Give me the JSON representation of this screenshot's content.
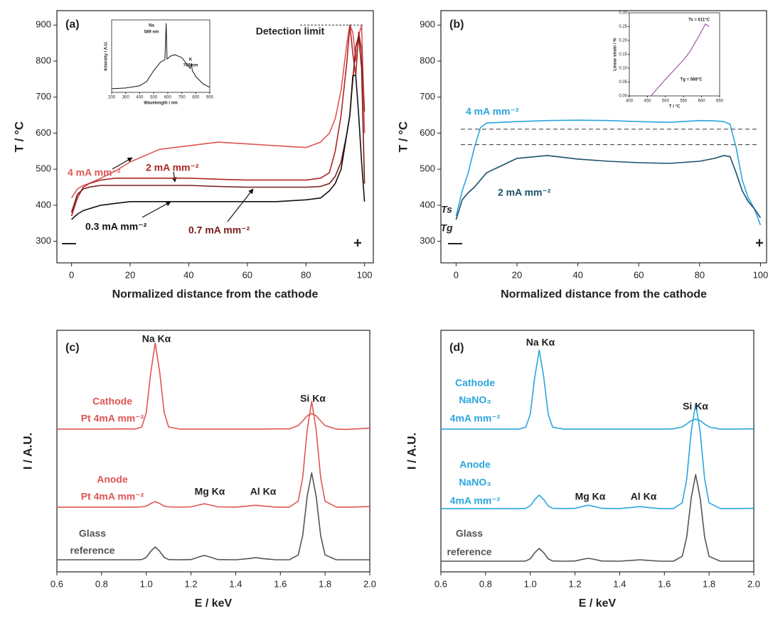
{
  "chart_data": [
    {
      "type": "line",
      "panel": "(a)",
      "xlabel": "Normalized distance from the cathode",
      "ylabel": "T / °C",
      "xlim": [
        -5,
        103
      ],
      "ylim": [
        240,
        940
      ],
      "xticks": [
        0,
        20,
        40,
        60,
        80,
        100
      ],
      "yticks": [
        300,
        400,
        500,
        600,
        700,
        800,
        900
      ],
      "x": [
        0,
        2,
        4,
        6,
        10,
        15,
        20,
        30,
        40,
        50,
        60,
        70,
        80,
        85,
        88,
        90,
        92,
        94,
        95,
        96,
        97,
        98,
        99,
        100
      ],
      "series": [
        {
          "name": "4 mA mm⁻²",
          "color": "#e05555",
          "values": [
            420,
            445,
            455,
            460,
            475,
            495,
            520,
            555,
            565,
            575,
            570,
            565,
            560,
            575,
            600,
            640,
            720,
            850,
            900,
            880,
            800,
            870,
            900,
            600
          ]
        },
        {
          "name": "2 mA mm⁻²",
          "color": "#b02525",
          "values": [
            370,
            420,
            450,
            460,
            470,
            475,
            475,
            475,
            475,
            472,
            470,
            470,
            470,
            475,
            490,
            550,
            650,
            800,
            900,
            820,
            760,
            880,
            830,
            660
          ]
        },
        {
          "name": "0.7 mA mm⁻²",
          "color": "#7a1a1a",
          "values": [
            380,
            430,
            445,
            450,
            455,
            455,
            455,
            455,
            455,
            452,
            450,
            450,
            450,
            452,
            460,
            480,
            520,
            600,
            650,
            750,
            840,
            870,
            780,
            460
          ]
        },
        {
          "name": "0.3 mA mm⁻²",
          "color": "#111111",
          "values": [
            360,
            375,
            385,
            390,
            400,
            405,
            410,
            410,
            410,
            410,
            410,
            410,
            415,
            420,
            440,
            460,
            500,
            600,
            650,
            760,
            760,
            650,
            520,
            410
          ]
        }
      ],
      "annotations": [
        "—",
        "+"
      ],
      "hlines": [
        {
          "value": 900,
          "label": "Detection limit"
        }
      ],
      "inset": {
        "type": "line",
        "xlabel": "Wavelength / nm",
        "ylabel": "Intensity / A.U.",
        "xlim": [
          200,
          900
        ],
        "ylim": [
          0,
          1
        ],
        "xticks": [
          200,
          300,
          400,
          500,
          600,
          700,
          800,
          900
        ],
        "x": [
          200,
          300,
          400,
          450,
          500,
          550,
          580,
          589,
          595,
          620,
          650,
          700,
          740,
          760,
          769,
          775,
          800,
          850,
          900
        ],
        "series": [
          {
            "color": "#111111",
            "values": [
              0.05,
              0.06,
              0.09,
              0.15,
              0.3,
              0.42,
              0.45,
              0.95,
              0.46,
              0.5,
              0.52,
              0.48,
              0.38,
              0.33,
              0.4,
              0.3,
              0.22,
              0.12,
              0.07
            ]
          }
        ],
        "annotations": [
          "Na",
          "589 nm",
          "K",
          "769 nm"
        ]
      }
    },
    {
      "type": "line",
      "panel": "(b)",
      "xlabel": "Normalized distance from the cathode",
      "ylabel": "T / °C",
      "xlim": [
        -5,
        102
      ],
      "ylim": [
        240,
        940
      ],
      "xticks": [
        0,
        20,
        40,
        60,
        80,
        100
      ],
      "yticks": [
        300,
        400,
        500,
        600,
        700,
        800,
        900
      ],
      "x": [
        0,
        2,
        4,
        6,
        8,
        10,
        15,
        20,
        30,
        40,
        50,
        60,
        70,
        80,
        85,
        88,
        90,
        92,
        94,
        96,
        98,
        100
      ],
      "series": [
        {
          "name": "4 mA mm⁻²",
          "color": "#2aa6dc",
          "values": [
            370,
            440,
            490,
            560,
            615,
            628,
            630,
            632,
            635,
            636,
            635,
            632,
            630,
            635,
            634,
            632,
            625,
            560,
            470,
            420,
            390,
            345
          ]
        },
        {
          "name": "2 mA mm⁻²",
          "color": "#1a4f6a",
          "values": [
            360,
            415,
            435,
            450,
            470,
            490,
            510,
            530,
            538,
            528,
            522,
            518,
            516,
            522,
            530,
            538,
            535,
            490,
            440,
            410,
            390,
            365
          ]
        }
      ],
      "annotations": [
        "—",
        "+"
      ],
      "hlines": [
        {
          "value": 611,
          "label": "Ts"
        },
        {
          "value": 568,
          "label": "Tg"
        }
      ],
      "inset": {
        "type": "line",
        "xlabel": "T / °C",
        "ylabel": "Linear strain / %",
        "xlim": [
          400,
          650
        ],
        "ylim": [
          0,
          0.3
        ],
        "xticks": [
          400,
          450,
          500,
          550,
          600,
          650
        ],
        "yticks": [
          {
            "value": 0,
            "label": "0.00"
          },
          0.05,
          {
            "value": 0.1,
            "label": "0.10"
          },
          0.15,
          {
            "value": 0.2,
            "label": "0.20"
          },
          0.25,
          {
            "value": 0.3,
            "label": "0.30"
          }
        ],
        "x": [
          460,
          500,
          550,
          568,
          590,
          611,
          620
        ],
        "series": [
          {
            "color": "#8b3f8f",
            "values": [
              0,
              0.06,
              0.13,
              0.16,
              0.21,
              0.26,
              0.25
            ]
          }
        ],
        "annotations": [
          "Ts = 611°C",
          "Tg = 568°C"
        ]
      }
    },
    {
      "type": "line",
      "panel": "(c)",
      "xlabel": "E / keV",
      "ylabel": "I / A.U.",
      "xlim": [
        0.6,
        2.0
      ],
      "ylim": [
        0,
        100
      ],
      "xticks": [
        0.6,
        0.8,
        {
          "value": 1,
          "label": "1.0"
        },
        1.2,
        1.4,
        1.6,
        1.8,
        {
          "value": 2,
          "label": "2.0"
        }
      ],
      "x": [
        0.6,
        0.7,
        0.8,
        0.9,
        0.95,
        0.98,
        1.0,
        1.02,
        1.04,
        1.06,
        1.08,
        1.1,
        1.15,
        1.2,
        1.24,
        1.26,
        1.28,
        1.32,
        1.4,
        1.46,
        1.49,
        1.52,
        1.58,
        1.64,
        1.68,
        1.7,
        1.72,
        1.74,
        1.76,
        1.78,
        1.8,
        1.85,
        1.9,
        2.0
      ],
      "series": [
        {
          "name": [
            "Cathode",
            "Pt 4mA mm⁻²"
          ],
          "color": "#e05555",
          "values": [
            59.1,
            59.1,
            59.1,
            59.2,
            59.1,
            60,
            65.9,
            82.6,
            94.7,
            82.6,
            65.9,
            60,
            59.1,
            59.1,
            59.1,
            59.1,
            59.1,
            59.1,
            59.1,
            59.1,
            59.1,
            59.1,
            59.2,
            59.2,
            60.6,
            62.5,
            64.6,
            65.6,
            64.6,
            62.5,
            60.6,
            59.1,
            59,
            59.5
          ]
        },
        {
          "name": [
            "Anode",
            "Pt 4mA mm⁻²"
          ],
          "color": "#e05555",
          "values": [
            26.8,
            26.8,
            26.8,
            26.8,
            26.8,
            26.9,
            27.2,
            28.3,
            29.1,
            28.3,
            27.2,
            26.9,
            26.8,
            26.9,
            27.8,
            28.2,
            27.8,
            26.9,
            26.8,
            27.3,
            27.6,
            27.3,
            26.8,
            26.8,
            29.3,
            39.1,
            58.8,
            70.6,
            58.8,
            39.1,
            29.3,
            26.8,
            26.8,
            27
          ]
        },
        {
          "name": [
            "Glass",
            "reference"
          ],
          "color": "#555555",
          "values": [
            5,
            5,
            5,
            5,
            5,
            5.1,
            6,
            8.5,
            10.3,
            8.5,
            6,
            5.1,
            5,
            5.1,
            6.3,
            6.8,
            6.3,
            5.1,
            5,
            5.5,
            5.9,
            5.5,
            5,
            5,
            7,
            15.1,
            31.3,
            41,
            31.3,
            15.1,
            7,
            5,
            5,
            5
          ]
        }
      ],
      "annotations": [
        "Na Kα",
        "Si Kα",
        "Mg Kα",
        "Al Kα"
      ]
    },
    {
      "type": "line",
      "panel": "(d)",
      "xlabel": "E / keV",
      "ylabel": "I / A.U.",
      "xlim": [
        0.6,
        2.0
      ],
      "ylim": [
        0,
        100
      ],
      "xticks": [
        0.6,
        0.8,
        {
          "value": 1,
          "label": "1.0"
        },
        1.2,
        1.4,
        1.6,
        1.8,
        {
          "value": 2,
          "label": "2.0"
        }
      ],
      "x": [
        0.6,
        0.7,
        0.8,
        0.9,
        0.95,
        0.98,
        1.0,
        1.02,
        1.04,
        1.06,
        1.08,
        1.1,
        1.15,
        1.2,
        1.24,
        1.26,
        1.28,
        1.32,
        1.4,
        1.46,
        1.49,
        1.52,
        1.58,
        1.64,
        1.68,
        1.7,
        1.72,
        1.74,
        1.76,
        1.78,
        1.8,
        1.85,
        1.9,
        2.0
      ],
      "series": [
        {
          "name": [
            "Cathode",
            "NaNO₃",
            "4mA mm⁻²"
          ],
          "color": "#2aa6dc",
          "values": [
            59.1,
            59.1,
            59.1,
            59.1,
            59.1,
            59.9,
            65.3,
            80.7,
            91.8,
            80.7,
            65.3,
            59.9,
            59.1,
            59.1,
            59.1,
            59.1,
            59.1,
            59.1,
            59.1,
            59.1,
            59.1,
            59.1,
            59.1,
            59.2,
            60,
            61.2,
            62.6,
            63.2,
            62.6,
            61.2,
            60,
            59.1,
            59.1,
            59.2
          ]
        },
        {
          "name": [
            "Anode",
            "NaNO₃",
            "4mA mm⁻²"
          ],
          "color": "#2aa6dc",
          "values": [
            26.2,
            26.2,
            26.2,
            26.2,
            26.2,
            26.3,
            27.3,
            29.9,
            31.8,
            29.9,
            27.3,
            26.3,
            26.2,
            26.3,
            27.2,
            27.6,
            27.2,
            26.3,
            26.2,
            26.7,
            27,
            26.7,
            26.2,
            26.2,
            28.6,
            38.4,
            58,
            69.7,
            58,
            38.4,
            28.6,
            26.2,
            26.2,
            26.3
          ]
        },
        {
          "name": [
            "Glass",
            "reference"
          ],
          "color": "#555555",
          "values": [
            4.4,
            4.4,
            4.4,
            4.4,
            4.4,
            4.5,
            5.4,
            7.9,
            9.7,
            7.9,
            5.4,
            4.5,
            4.4,
            4.5,
            5.3,
            5.6,
            5.3,
            4.5,
            4.4,
            4.8,
            5,
            4.8,
            4.4,
            4.4,
            6.4,
            14.4,
            30.6,
            40.3,
            30.6,
            14.4,
            6.4,
            4.4,
            4.4,
            4.4
          ]
        }
      ],
      "annotations": [
        "Na Kα",
        "Si Kα",
        "Mg Kα",
        "Al Kα"
      ]
    }
  ]
}
